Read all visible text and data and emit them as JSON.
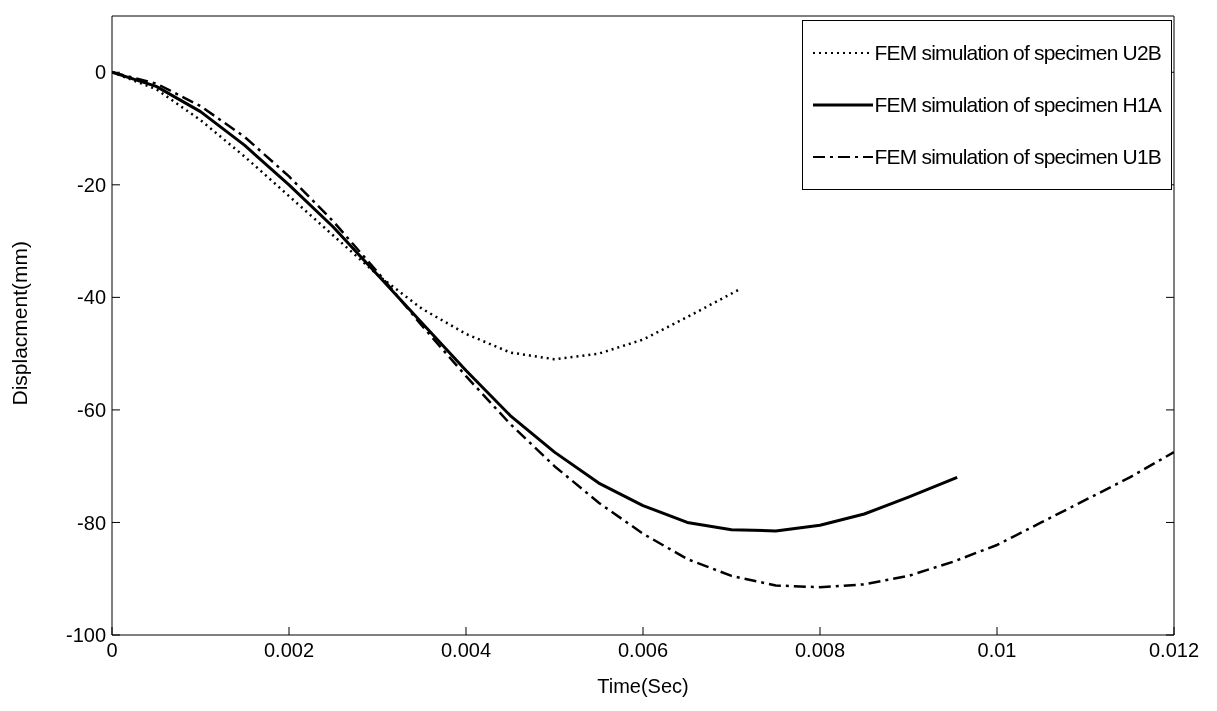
{
  "chart_data": {
    "type": "line",
    "xlabel": "Time(Sec)",
    "ylabel": "Displacment(mm)",
    "xlim": [
      0,
      0.012
    ],
    "xticks": [
      0,
      0.002,
      0.004,
      0.006,
      0.008,
      0.01,
      0.012
    ],
    "ylim": [
      -100,
      10
    ],
    "yticks": [
      -100,
      -80,
      -60,
      -40,
      -20,
      0
    ],
    "grid": false,
    "legend": "top right",
    "marker": "none",
    "series": [
      {
        "name": "FEM simulation of specimen U2B",
        "color": "#000000",
        "line_style": "dotted",
        "x": [
          0,
          0.0005,
          0.001,
          0.0015,
          0.002,
          0.0025,
          0.003,
          0.0035,
          0.004,
          0.0045,
          0.005,
          0.0055,
          0.006,
          0.0065,
          0.0071
        ],
        "values": [
          0,
          -3,
          -8.5,
          -15,
          -22,
          -29,
          -36,
          -42,
          -46.5,
          -49.8,
          -51,
          -50,
          -47.5,
          -43.5,
          -38.5
        ]
      },
      {
        "name": "FEM simulation of specimen H1A",
        "color": "#000000",
        "line_style": "solid",
        "x": [
          0,
          0.0005,
          0.001,
          0.0015,
          0.002,
          0.0025,
          0.003,
          0.0035,
          0.004,
          0.0045,
          0.005,
          0.0055,
          0.006,
          0.0065,
          0.007,
          0.0075,
          0.008,
          0.0085,
          0.009,
          0.00955
        ],
        "values": [
          0,
          -2.5,
          -7,
          -13,
          -20,
          -27.5,
          -36,
          -44.5,
          -53,
          -61,
          -67.5,
          -73,
          -77,
          -80,
          -81.3,
          -81.5,
          -80.5,
          -78.5,
          -75.5,
          -72
        ]
      },
      {
        "name": "FEM simulation of specimen U1B",
        "color": "#000000",
        "line_style": "dashed",
        "x": [
          0,
          0.0005,
          0.001,
          0.0015,
          0.002,
          0.0025,
          0.003,
          0.0035,
          0.004,
          0.0045,
          0.005,
          0.0055,
          0.006,
          0.0065,
          0.007,
          0.0075,
          0.008,
          0.0085,
          0.009,
          0.0095,
          0.01,
          0.0105,
          0.011,
          0.0115,
          0.012
        ],
        "values": [
          0,
          -2,
          -6,
          -11.5,
          -18.5,
          -26.5,
          -35.5,
          -45,
          -54,
          -62.5,
          -70,
          -76.5,
          -82,
          -86.5,
          -89.5,
          -91.2,
          -91.5,
          -91,
          -89.5,
          -87,
          -84,
          -80,
          -76,
          -72,
          -67.5
        ]
      }
    ]
  }
}
